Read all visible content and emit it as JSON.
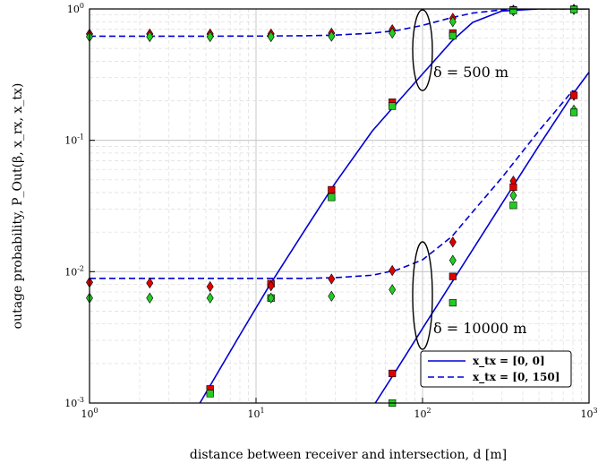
{
  "chart_data": {
    "type": "line",
    "xlabel": "distance between receiver and intersection, d [m]",
    "ylabel": "outage probability, P_Out(β, x_rx, x_tx)",
    "xscale": "log",
    "yscale": "log",
    "xlim": [
      1,
      1000
    ],
    "ylim": [
      0.001,
      1
    ],
    "grid": true,
    "legend_position": "bottom-right",
    "x_ticks": [
      "10^0",
      "10^1",
      "10^2",
      "10^3"
    ],
    "y_ticks": [
      "10^-3",
      "10^-2",
      "10^-1",
      "10^0"
    ],
    "annotations": [
      "δ = 500 m",
      "δ = 10000 m"
    ],
    "legend": [
      {
        "label": "x_tx = [0, 0]",
        "style": "solid"
      },
      {
        "label": "x_tx = [0, 150]",
        "style": "dashed"
      }
    ],
    "colors": {
      "line": "#0000d4",
      "red_marker": "#e00000",
      "green_marker": "#22cc22"
    },
    "series": [
      {
        "group": "δ = 500 m",
        "style": "solid",
        "x": [
          4.6,
          8,
          12,
          20,
          30,
          50,
          70,
          100,
          150,
          200,
          300,
          500,
          1000
        ],
        "values": [
          0.001,
          0.0033,
          0.0078,
          0.0215,
          0.0475,
          0.118,
          0.192,
          0.32,
          0.57,
          0.79,
          0.965,
          1.0,
          1.0
        ]
      },
      {
        "group": "δ = 500 m",
        "style": "dashed",
        "x": [
          1,
          5,
          10,
          20,
          30,
          50,
          70,
          100,
          150,
          200,
          300,
          500,
          1000
        ],
        "values": [
          0.62,
          0.62,
          0.621,
          0.625,
          0.632,
          0.655,
          0.685,
          0.75,
          0.86,
          0.93,
          0.985,
          1.0,
          1.0
        ]
      },
      {
        "group": "δ = 10000 m",
        "style": "solid",
        "x": [
          52,
          70,
          100,
          150,
          200,
          300,
          500,
          800,
          1000
        ],
        "values": [
          0.001,
          0.0018,
          0.0037,
          0.0083,
          0.0147,
          0.033,
          0.091,
          0.225,
          0.33
        ]
      },
      {
        "group": "δ = 10000 m",
        "style": "dashed",
        "x": [
          1,
          5,
          10,
          20,
          30,
          50,
          70,
          100,
          150,
          200,
          300,
          500,
          800
        ],
        "values": [
          0.0089,
          0.0089,
          0.0089,
          0.0089,
          0.009,
          0.0094,
          0.0103,
          0.0123,
          0.0185,
          0.0285,
          0.052,
          0.118,
          0.24
        ]
      }
    ],
    "markers": [
      {
        "group": "δ = 500 m",
        "shape": "diamond",
        "color": "red",
        "x": [
          1,
          2.3,
          5.3,
          12.3,
          28.4,
          65.8,
          152,
          351,
          811
        ],
        "values": [
          0.645,
          0.645,
          0.645,
          0.645,
          0.655,
          0.695,
          0.85,
          0.98,
          0.995
        ]
      },
      {
        "group": "δ = 500 m",
        "shape": "diamond",
        "color": "green",
        "x": [
          1,
          2.3,
          5.3,
          12.3,
          28.4,
          65.8,
          152,
          351,
          811
        ],
        "values": [
          0.615,
          0.615,
          0.615,
          0.615,
          0.62,
          0.655,
          0.8,
          0.965,
          0.99
        ]
      },
      {
        "group": "δ = 500 m",
        "shape": "square",
        "color": "red",
        "x": [
          5.3,
          12.3,
          28.4,
          65.8,
          152,
          351,
          811
        ],
        "values": [
          0.00128,
          0.0081,
          0.042,
          0.195,
          0.655,
          0.985,
          0.995
        ]
      },
      {
        "group": "δ = 500 m",
        "shape": "square",
        "color": "green",
        "x": [
          5.3,
          12.3,
          28.4,
          65.8,
          152,
          351,
          811
        ],
        "values": [
          0.00118,
          0.0063,
          0.0368,
          0.182,
          0.625,
          0.975,
          0.99
        ]
      },
      {
        "group": "δ = 10000 m",
        "shape": "diamond",
        "color": "red",
        "x": [
          1,
          2.3,
          5.3,
          12.3,
          28.4,
          65.8,
          152,
          351,
          811
        ],
        "values": [
          0.0083,
          0.0082,
          0.0077,
          0.0078,
          0.0088,
          0.0102,
          0.0168,
          0.049,
          0.22
        ]
      },
      {
        "group": "δ = 10000 m",
        "shape": "diamond",
        "color": "green",
        "x": [
          1,
          2.3,
          5.3,
          12.3,
          28.4,
          65.8,
          152,
          351,
          811
        ],
        "values": [
          0.0063,
          0.0063,
          0.0063,
          0.0063,
          0.0065,
          0.0073,
          0.0122,
          0.038,
          0.17
        ]
      },
      {
        "group": "δ = 10000 m",
        "shape": "square",
        "color": "red",
        "x": [
          65.8,
          152,
          351,
          811
        ],
        "values": [
          0.00168,
          0.0092,
          0.044,
          0.22
        ]
      },
      {
        "group": "δ = 10000 m",
        "shape": "square",
        "color": "green",
        "x": [
          65.8,
          152,
          351,
          811
        ],
        "values": [
          0.001,
          0.0058,
          0.032,
          0.163
        ]
      }
    ]
  }
}
